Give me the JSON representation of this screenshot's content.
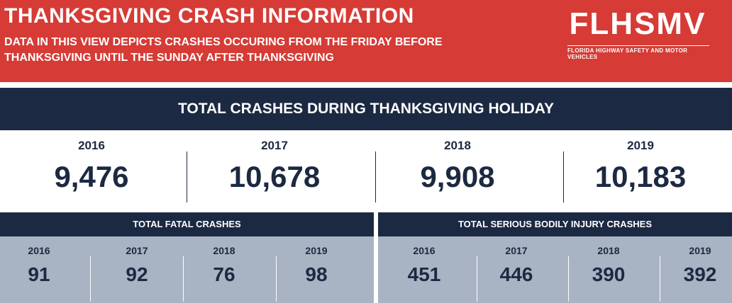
{
  "header": {
    "title": "THANKSGIVING CRASH INFORMATION",
    "subtitle": "DATA IN THIS VIEW DEPICTS CRASHES OCCURING FROM THE FRIDAY BEFORE THANKSGIVING UNTIL THE SUNDAY AFTER THANKSGIVING",
    "logo_text": "FLHSMV",
    "logo_tagline": "FLORIDA HIGHWAY SAFETY AND MOTOR VEHICLES"
  },
  "total": {
    "title": "TOTAL CRASHES DURING THANKSGIVING HOLIDAY",
    "items": [
      {
        "year": "2016",
        "value": "9,476"
      },
      {
        "year": "2017",
        "value": "10,678"
      },
      {
        "year": "2018",
        "value": "9,908"
      },
      {
        "year": "2019",
        "value": "10,183"
      }
    ]
  },
  "fatal": {
    "title": "TOTAL FATAL CRASHES",
    "items": [
      {
        "year": "2016",
        "value": "91"
      },
      {
        "year": "2017",
        "value": "92"
      },
      {
        "year": "2018",
        "value": "76"
      },
      {
        "year": "2019",
        "value": "98"
      }
    ]
  },
  "injury": {
    "title": "TOTAL SERIOUS BODILY INJURY CRASHES",
    "items": [
      {
        "year": "2016",
        "value": "451"
      },
      {
        "year": "2017",
        "value": "446"
      },
      {
        "year": "2018",
        "value": "390"
      },
      {
        "year": "2019",
        "value": "392"
      }
    ]
  },
  "colors": {
    "header_red": "#d63b35",
    "navy": "#1c2942",
    "panel_gray": "#a8b3c3"
  }
}
